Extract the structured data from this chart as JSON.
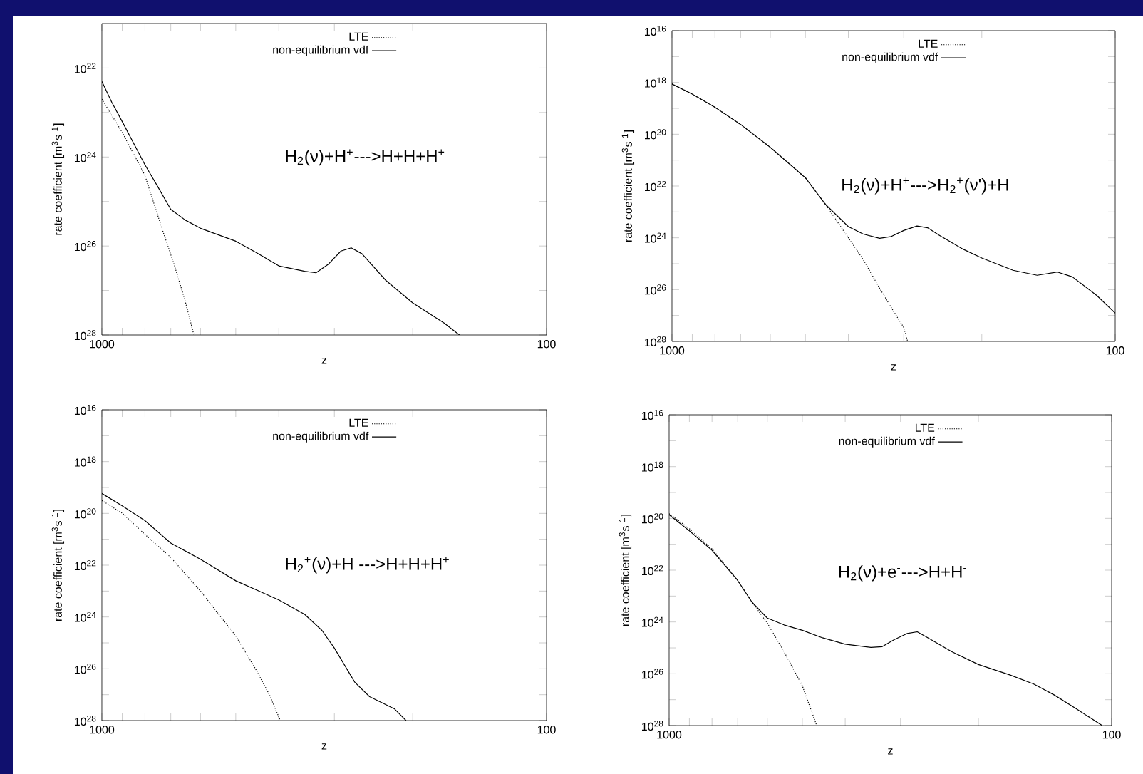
{
  "chart_data": [
    {
      "type": "line",
      "xlabel": "z",
      "ylabel": "rate coefficient [m$^{3}$s $^{1}$]",
      "annotations": [
        "H$_{2}$(ν)+H$^{+}$--->H+H+H$^{+}$"
      ],
      "log": "xy",
      "legend": "top",
      "xlim": [
        1000,
        100
      ],
      "ylim": [
        1e+28,
        1e+21
      ],
      "xticks": [
        1000,
        {
          "value": 900,
          "label": null
        },
        {
          "value": 800,
          "label": null
        },
        {
          "value": 700,
          "label": null
        },
        {
          "value": 600,
          "label": null
        },
        {
          "value": 500,
          "label": null
        },
        {
          "value": 400,
          "label": null
        },
        {
          "value": 300,
          "label": null
        },
        {
          "value": 200,
          "label": null
        },
        100
      ],
      "yticks": [
        {
          "value": 1e+22,
          "label": "10$^{22}$"
        },
        {
          "value": 1e+23,
          "label": null
        },
        {
          "value": 1e+24,
          "label": "10$^{24}$"
        },
        {
          "value": 1e+25,
          "label": null
        },
        {
          "value": 1e+26,
          "label": "10$^{26}$"
        },
        {
          "value": 1e+27,
          "label": null
        },
        {
          "value": 1e+28,
          "label": "10$^{28}$"
        }
      ],
      "series": [
        {
          "name": "LTE",
          "color": "#000000",
          "line_style": "dotted",
          "x": [
            1000,
            900,
            800,
            733,
            688,
            651,
            621
          ],
          "values": [
            5e+22,
            2.8e+23,
            2.6e+24,
            4e+25,
            2.6e+26,
            1.6e+27,
            1e+28
          ]
        },
        {
          "name": "non-equilibrium vdf",
          "color": "#000000",
          "line_style": "solid",
          "x": [
            1000,
            950,
            900,
            800,
            750,
            700,
            650,
            600,
            500,
            450,
            400,
            350,
            330,
            310,
            290,
            275,
            260,
            230,
            200,
            170,
            157
          ],
          "values": [
            2e+22,
            5.9e+22,
            1.6e+23,
            1.5e+24,
            4.5e+24,
            1.5e+25,
            2.6e+25,
            4e+25,
            7.8e+25,
            1.4e+26,
            2.8e+26,
            3.7e+26,
            4e+26,
            2.6e+26,
            1.3e+26,
            1.1e+26,
            1.5e+26,
            5.9e+26,
            1.9e+27,
            5.4e+27,
            1e+28
          ]
        }
      ]
    },
    {
      "type": "line",
      "xlabel": "z",
      "ylabel": "rate coefficient [m$^{3}$s $^{1}$]",
      "annotations": [
        "H$_{2}$(ν)+H$^{+}$--->H$_{2}$$^{+}$(ν')+H"
      ],
      "log": "xy",
      "legend": "top",
      "xlim": [
        1000,
        100
      ],
      "ylim": [
        1e+28,
        1e+16
      ],
      "xticks": [
        1000,
        {
          "value": 900,
          "label": null
        },
        {
          "value": 800,
          "label": null
        },
        {
          "value": 700,
          "label": null
        },
        {
          "value": 600,
          "label": null
        },
        {
          "value": 500,
          "label": null
        },
        {
          "value": 400,
          "label": null
        },
        {
          "value": 300,
          "label": null
        },
        {
          "value": 200,
          "label": null
        },
        100
      ],
      "yticks": [
        {
          "value": 1e+16,
          "label": "10$^{16}$"
        },
        {
          "value": 1e+17,
          "label": null
        },
        {
          "value": 1e+18,
          "label": "10$^{18}$"
        },
        {
          "value": 1e+19,
          "label": null
        },
        {
          "value": 1e+20,
          "label": "10$^{20}$"
        },
        {
          "value": 1e+21,
          "label": null
        },
        {
          "value": 1e+22,
          "label": "10$^{22}$"
        },
        {
          "value": 1e+23,
          "label": null
        },
        {
          "value": 1e+24,
          "label": "10$^{24}$"
        },
        {
          "value": 1e+25,
          "label": null
        },
        {
          "value": 1e+26,
          "label": "10$^{26}$"
        },
        {
          "value": 1e+27,
          "label": null
        },
        {
          "value": 1e+28,
          "label": "10$^{28}$"
        }
      ],
      "series": [
        {
          "name": "LTE",
          "color": "#000000",
          "line_style": "dotted",
          "x": [
            1000,
            900,
            800,
            700,
            600,
            500,
            450,
            400,
            370,
            340,
            320,
            300,
            294
          ],
          "values": [
            1.15e+18,
            2.8e+18,
            9.1e+18,
            4.2e+19,
            3.2e+20,
            4.8e+21,
            5.2e+22,
            1e+24,
            7.1e+24,
            8.9e+25,
            5e+26,
            2.9e+27,
            1e+28
          ]
        },
        {
          "name": "non-equilibrium vdf",
          "color": "#000000",
          "line_style": "solid",
          "x": [
            1000,
            900,
            800,
            700,
            600,
            500,
            450,
            400,
            370,
            340,
            320,
            300,
            280,
            265,
            250,
            220,
            200,
            170,
            150,
            135,
            125,
            110,
            100
          ],
          "values": [
            1.15e+18,
            2.8e+18,
            9.1e+18,
            4.2e+19,
            3.2e+20,
            4.8e+21,
            5.2e+22,
            3.7e+23,
            7.2e+23,
            1.05e+24,
            8.9e+23,
            5.2e+23,
            3.5e+23,
            4.1e+23,
            7.8e+23,
            2.8e+24,
            6e+24,
            1.8e+25,
            2.8e+25,
            2.1e+25,
            3.2e+25,
            1.7e+26,
            8.1e+26
          ]
        }
      ]
    },
    {
      "type": "line",
      "xlabel": "z",
      "ylabel": "rate coefficient [m$^{3}$s $^{1}$]",
      "annotations": [
        "H$_{2}$$^{+}$(ν)+H --->H+H+H$^{+}$"
      ],
      "log": "xy",
      "legend": "top",
      "xlim": [
        1000,
        100
      ],
      "ylim": [
        1e+28,
        1e+16
      ],
      "xticks": [
        1000,
        {
          "value": 900,
          "label": null
        },
        {
          "value": 800,
          "label": null
        },
        {
          "value": 700,
          "label": null
        },
        {
          "value": 600,
          "label": null
        },
        {
          "value": 500,
          "label": null
        },
        {
          "value": 400,
          "label": null
        },
        {
          "value": 300,
          "label": null
        },
        {
          "value": 200,
          "label": null
        },
        100
      ],
      "yticks": [
        {
          "value": 1e+16,
          "label": "10$^{16}$"
        },
        {
          "value": 1e+17,
          "label": null
        },
        {
          "value": 1e+18,
          "label": "10$^{18}$"
        },
        {
          "value": 1e+19,
          "label": null
        },
        {
          "value": 1e+20,
          "label": "10$^{20}$"
        },
        {
          "value": 1e+21,
          "label": null
        },
        {
          "value": 1e+22,
          "label": "10$^{22}$"
        },
        {
          "value": 1e+23,
          "label": null
        },
        {
          "value": 1e+24,
          "label": "10$^{24}$"
        },
        {
          "value": 1e+25,
          "label": null
        },
        {
          "value": 1e+26,
          "label": "10$^{26}$"
        },
        {
          "value": 1e+27,
          "label": null
        },
        {
          "value": 1e+28,
          "label": "10$^{28}$"
        }
      ],
      "series": [
        {
          "name": "LTE",
          "color": "#000000",
          "line_style": "dotted",
          "x": [
            1000,
            900,
            800,
            700,
            600,
            500,
            450,
            420,
            397
          ],
          "values": [
            3.2e+19,
            9.8e+19,
            6.5e+20,
            5e+21,
            1e+23,
            5.4e+24,
            1.1e+26,
            1e+27,
            1e+28
          ]
        },
        {
          "name": "non-equilibrium vdf",
          "color": "#000000",
          "line_style": "solid",
          "x": [
            1000,
            900,
            800,
            700,
            600,
            500,
            450,
            400,
            350,
            320,
            300,
            270,
            250,
            220,
            207
          ],
          "values": [
            1.7e+19,
            5.1e+19,
            1.9e+20,
            1.4e+21,
            5.9e+21,
            4e+22,
            8.9e+22,
            2.2e+23,
            7.9e+23,
            3.3e+24,
            1.6e+25,
            3.3e+26,
            1.2e+27,
            3.5e+27,
            1e+28
          ]
        }
      ]
    },
    {
      "type": "line",
      "xlabel": "z",
      "ylabel": "rate coefficient [m$^{3}$s $^{1}$]",
      "annotations": [
        "H$_{2}$(ν)+e$^{-}$--->H+H$^{-}$"
      ],
      "log": "xy",
      "legend": "top",
      "xlim": [
        1000,
        100
      ],
      "ylim": [
        1e+28,
        1e+16
      ],
      "xticks": [
        1000,
        {
          "value": 900,
          "label": null
        },
        {
          "value": 800,
          "label": null
        },
        {
          "value": 700,
          "label": null
        },
        {
          "value": 600,
          "label": null
        },
        {
          "value": 500,
          "label": null
        },
        {
          "value": 400,
          "label": null
        },
        {
          "value": 300,
          "label": null
        },
        {
          "value": 200,
          "label": null
        },
        100
      ],
      "yticks": [
        {
          "value": 1e+16,
          "label": "10$^{16}$"
        },
        {
          "value": 1e+17,
          "label": null
        },
        {
          "value": 1e+18,
          "label": "10$^{18}$"
        },
        {
          "value": 1e+19,
          "label": null
        },
        {
          "value": 1e+20,
          "label": "10$^{20}$"
        },
        {
          "value": 1e+21,
          "label": null
        },
        {
          "value": 1e+22,
          "label": "10$^{22}$"
        },
        {
          "value": 1e+23,
          "label": null
        },
        {
          "value": 1e+24,
          "label": "10$^{24}$"
        },
        {
          "value": 1e+25,
          "label": null
        },
        {
          "value": 1e+26,
          "label": "10$^{26}$"
        },
        {
          "value": 1e+27,
          "label": null
        },
        {
          "value": 1e+28,
          "label": "10$^{28}$"
        }
      ],
      "series": [
        {
          "name": "LTE",
          "color": "#000000",
          "line_style": "dotted",
          "x": [
            1000,
            900,
            800,
            700,
            650,
            600,
            550,
            500,
            464
          ],
          "values": [
            6.6e+19,
            2.5e+20,
            1.5e+21,
            2.5e+22,
            1.7e+23,
            1.1e+24,
            1.4e+25,
            2.9e+26,
            1e+28
          ]
        },
        {
          "name": "non-equilibrium vdf",
          "color": "#000000",
          "line_style": "solid",
          "x": [
            1000,
            900,
            800,
            700,
            650,
            600,
            550,
            500,
            450,
            400,
            350,
            330,
            310,
            290,
            275,
            260,
            230,
            200,
            170,
            150,
            135,
            120,
            105
          ],
          "values": [
            7.2e+19,
            3e+20,
            1.7e+21,
            2.5e+22,
            1.7e+23,
            7.1e+23,
            1.3e+24,
            2.1e+24,
            4.1e+24,
            7.2e+24,
            9.6e+24,
            9e+24,
            4.8e+24,
            2.8e+24,
            2.4e+24,
            4.1e+24,
            1.4e+25,
            4.4e+25,
            1.1e+26,
            2.5e+26,
            6.5e+26,
            2.3e+27,
            1e+28
          ]
        }
      ]
    }
  ]
}
